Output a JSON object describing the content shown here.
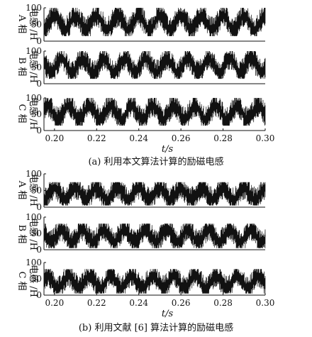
{
  "figure": {
    "panels": [
      {
        "caption": "(a) 利用本文算法计算的励磁电感",
        "xlabel": "t/s",
        "subplots": [
          {
            "ylabel_line1": "A 相",
            "ylabel_line2": "电感 /H"
          },
          {
            "ylabel_line1": "B 相",
            "ylabel_line2": "电感 /H"
          },
          {
            "ylabel_line1": "C 相",
            "ylabel_line2": "电感 /H"
          }
        ]
      },
      {
        "caption": "(b) 利用文献 [6] 算法计算的励磁电感",
        "xlabel": "t/s",
        "subplots": [
          {
            "ylabel_line1": "A 相",
            "ylabel_line2": "电感 /H"
          },
          {
            "ylabel_line1": "B 相",
            "ylabel_line2": "电感 /H"
          },
          {
            "ylabel_line1": "C 相",
            "ylabel_line2": "电感 /H"
          }
        ]
      }
    ]
  },
  "chart_data": [
    {
      "type": "line",
      "title": "",
      "subplot": "(a) A 相",
      "xlabel": "",
      "ylabel": "A 相 电感 /H",
      "xlim": [
        0.195,
        0.3
      ],
      "ylim": [
        0,
        100
      ],
      "x_ticks": [],
      "y_ticks": [
        0,
        50,
        100
      ],
      "series": [
        {
          "period_s": 0.01,
          "phase_s": 0.0,
          "min_H": 15,
          "max_H": 100,
          "mean_H": 55
        }
      ]
    },
    {
      "type": "line",
      "title": "",
      "subplot": "(a) B 相",
      "xlabel": "",
      "ylabel": "B 相 电感 /H",
      "xlim": [
        0.195,
        0.3
      ],
      "ylim": [
        0,
        100
      ],
      "x_ticks": [],
      "y_ticks": [
        0,
        50,
        100
      ],
      "series": [
        {
          "period_s": 0.01,
          "phase_s": 0.0033,
          "min_H": 15,
          "max_H": 100,
          "mean_H": 55
        }
      ]
    },
    {
      "type": "line",
      "title": "",
      "subplot": "(a) C 相",
      "xlabel": "t/s",
      "ylabel": "C 相 电感 /H",
      "xlim": [
        0.195,
        0.3
      ],
      "ylim": [
        0,
        100
      ],
      "x_ticks": [
        0.2,
        0.22,
        0.24,
        0.26,
        0.28,
        0.3
      ],
      "y_ticks": [
        0,
        50,
        100
      ],
      "series": [
        {
          "period_s": 0.01,
          "phase_s": 0.0067,
          "min_H": 15,
          "max_H": 100,
          "mean_H": 55
        }
      ]
    },
    {
      "type": "line",
      "title": "",
      "subplot": "(b) A 相",
      "xlabel": "",
      "ylabel": "A 相 电感 /H",
      "xlim": [
        0.195,
        0.3
      ],
      "ylim": [
        0,
        100
      ],
      "x_ticks": [],
      "y_ticks": [
        0,
        50,
        100
      ],
      "series": [
        {
          "period_s": 0.01,
          "phase_s": 0.0,
          "min_H": 5,
          "max_H": 75,
          "mean_H": 40
        }
      ]
    },
    {
      "type": "line",
      "title": "",
      "subplot": "(b) B 相",
      "xlabel": "",
      "ylabel": "B 相 电感 /H",
      "xlim": [
        0.195,
        0.3
      ],
      "ylim": [
        0,
        100
      ],
      "x_ticks": [],
      "y_ticks": [
        0,
        50,
        100
      ],
      "series": [
        {
          "period_s": 0.01,
          "phase_s": 0.0033,
          "min_H": 5,
          "max_H": 80,
          "mean_H": 42
        }
      ]
    },
    {
      "type": "line",
      "title": "",
      "subplot": "(b) C 相",
      "xlabel": "t/s",
      "ylabel": "C 相 电感 /H",
      "xlim": [
        0.195,
        0.3
      ],
      "ylim": [
        0,
        100
      ],
      "x_ticks": [
        0.2,
        0.22,
        0.24,
        0.26,
        0.28,
        0.3
      ],
      "y_ticks": [
        0,
        50,
        100
      ],
      "series": [
        {
          "period_s": 0.01,
          "phase_s": 0.0067,
          "min_H": 5,
          "max_H": 80,
          "mean_H": 40
        }
      ]
    }
  ]
}
